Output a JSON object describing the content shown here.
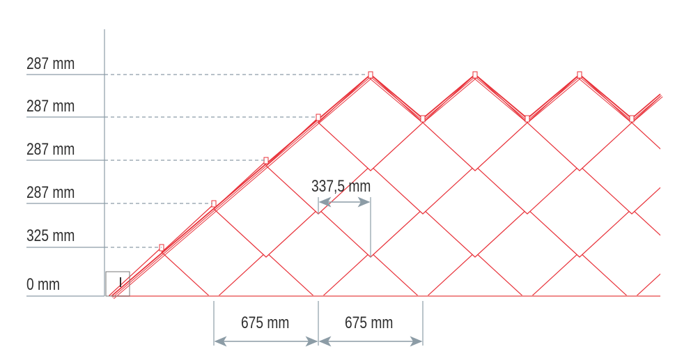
{
  "height_labels": [
    "287 mm",
    "287 mm",
    "287 mm",
    "287 mm",
    "325 mm",
    "0 mm"
  ],
  "width_labels": [
    "675 mm",
    "675 mm"
  ],
  "offset_label": "337,5 mm",
  "colors": {
    "tile_stroke": "#e8323a",
    "base_line": "#f08a8a",
    "dimension": "#8c9ca6",
    "text": "#2e2e2e"
  }
}
